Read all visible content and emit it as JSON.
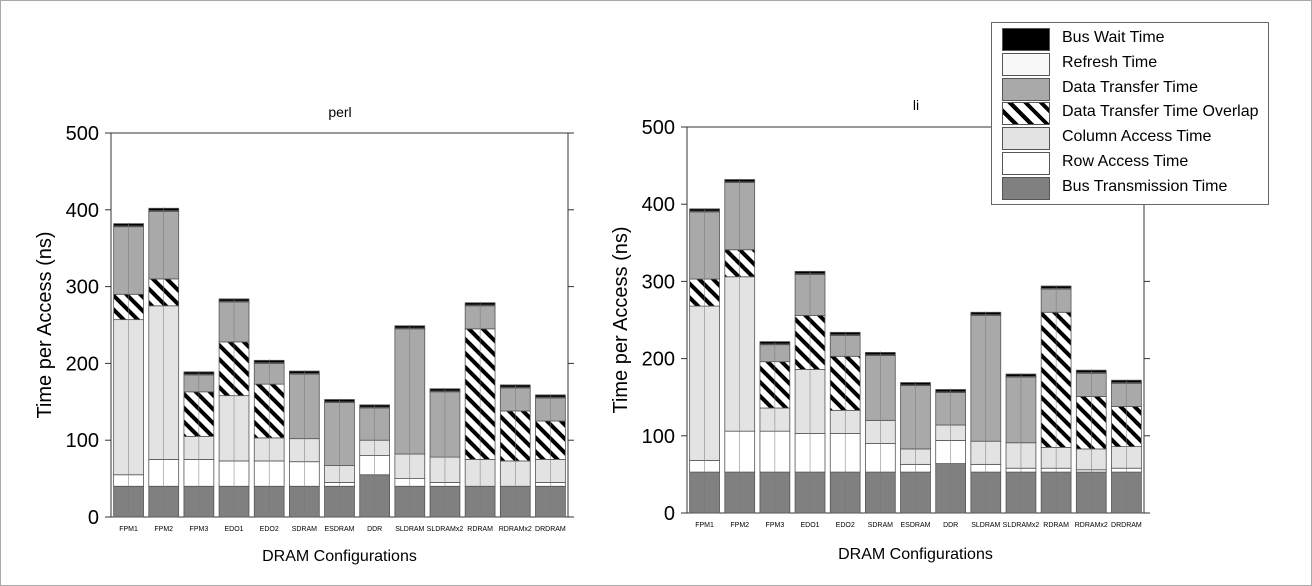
{
  "chart_data": [
    {
      "type": "bar",
      "stacked": true,
      "title": "perl",
      "xlabel": "DRAM Configurations",
      "ylabel": "Time per Access (ns)",
      "ylim": [
        0,
        500
      ],
      "yticks": [
        0,
        100,
        200,
        300,
        400,
        500
      ],
      "grid": false,
      "categories": [
        "FPM1",
        "FPM2",
        "FPM3",
        "EDO1",
        "EDO2",
        "SDRAM",
        "ESDRAM",
        "DDR",
        "SLDRAM",
        "SLDRAMx2",
        "RDRAM",
        "RDRAMx2",
        "DRDRAM"
      ],
      "series": [
        {
          "name": "Bus Transmission Time",
          "values": [
            40,
            40,
            40,
            40,
            40,
            40,
            40,
            55,
            40,
            40,
            40,
            40,
            40
          ]
        },
        {
          "name": "Row Access Time",
          "values": [
            15,
            35,
            35,
            33,
            33,
            32,
            5,
            25,
            10,
            5,
            0,
            0,
            5
          ]
        },
        {
          "name": "Column Access Time",
          "values": [
            202,
            200,
            30,
            85,
            30,
            30,
            22,
            20,
            32,
            33,
            35,
            33,
            30
          ]
        },
        {
          "name": "Data Transfer Time Overlap",
          "values": [
            33,
            35,
            58,
            70,
            70,
            0,
            0,
            0,
            0,
            0,
            170,
            65,
            50
          ]
        },
        {
          "name": "Data Transfer Time",
          "values": [
            88,
            88,
            22,
            52,
            27,
            84,
            82,
            42,
            163,
            85,
            30,
            30,
            30
          ]
        },
        {
          "name": "Refresh Time",
          "values": [
            1,
            1,
            1,
            1,
            1,
            1,
            1,
            1,
            1,
            1,
            1,
            1,
            1
          ]
        },
        {
          "name": "Bus Wait Time",
          "values": [
            3,
            3,
            3,
            3,
            3,
            3,
            3,
            3,
            3,
            3,
            3,
            3,
            3
          ]
        }
      ]
    },
    {
      "type": "bar",
      "stacked": true,
      "title": "li",
      "xlabel": "DRAM Configurations",
      "ylabel": "Time per Access (ns)",
      "ylim": [
        0,
        500
      ],
      "yticks": [
        0,
        100,
        200,
        300,
        400,
        500
      ],
      "grid": false,
      "categories": [
        "FPM1",
        "FPM2",
        "FPM3",
        "EDO1",
        "EDO2",
        "SDRAM",
        "ESDRAM",
        "DDR",
        "SLDRAM",
        "SLDRAMx2",
        "RDRAM",
        "RDRAMx2",
        "DRDRAM"
      ],
      "series": [
        {
          "name": "Bus Transmission Time",
          "values": [
            53,
            53,
            53,
            53,
            53,
            53,
            53,
            64,
            53,
            53,
            53,
            53,
            53
          ]
        },
        {
          "name": "Row Access Time",
          "values": [
            15,
            53,
            53,
            50,
            50,
            37,
            10,
            30,
            10,
            5,
            5,
            3,
            5
          ]
        },
        {
          "name": "Column Access Time",
          "values": [
            200,
            200,
            30,
            83,
            30,
            30,
            20,
            20,
            30,
            33,
            27,
            27,
            28
          ]
        },
        {
          "name": "Data Transfer Time Overlap",
          "values": [
            35,
            35,
            60,
            70,
            70,
            0,
            0,
            0,
            0,
            0,
            175,
            68,
            52
          ]
        },
        {
          "name": "Data Transfer Time",
          "values": [
            87,
            87,
            22,
            53,
            27,
            84,
            82,
            42,
            163,
            85,
            30,
            30,
            30
          ]
        },
        {
          "name": "Refresh Time",
          "values": [
            1,
            1,
            1,
            1,
            1,
            1,
            1,
            1,
            1,
            1,
            1,
            1,
            1
          ]
        },
        {
          "name": "Bus Wait Time",
          "values": [
            3,
            3,
            3,
            3,
            3,
            3,
            3,
            3,
            3,
            3,
            3,
            3,
            3
          ]
        }
      ]
    }
  ],
  "legend": {
    "placement": "top-right",
    "items": [
      {
        "label": "Bus Wait Time",
        "color": "#000000",
        "pattern": "solid"
      },
      {
        "label": "Refresh Time",
        "color": "#f8f8f8",
        "pattern": "solid"
      },
      {
        "label": "Data Transfer Time",
        "color": "#a9a9a9",
        "pattern": "solid"
      },
      {
        "label": "Data Transfer Time Overlap",
        "color": "#ffffff",
        "pattern": "diagonal-hatch"
      },
      {
        "label": "Column Access Time",
        "color": "#e3e3e3",
        "pattern": "solid"
      },
      {
        "label": "Row Access Time",
        "color": "#ffffff",
        "pattern": "solid"
      },
      {
        "label": "Bus Transmission Time",
        "color": "#808080",
        "pattern": "solid"
      }
    ]
  }
}
